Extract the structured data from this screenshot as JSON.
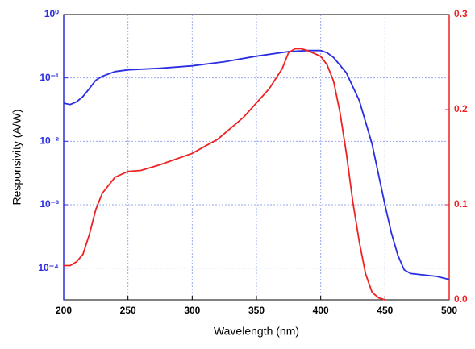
{
  "chart_data": {
    "type": "line",
    "xlabel": "Wavelength (nm)",
    "ylabel": "Responsivity (A/W)",
    "xlim": [
      200,
      500
    ],
    "xticks": [
      200,
      250,
      300,
      350,
      400,
      450,
      500
    ],
    "ylim": [
      3.16e-05,
      1
    ],
    "ylog": true,
    "yticks": [
      {
        "value": 1,
        "label": "10⁰"
      },
      {
        "value": 0.1,
        "label": "10⁻¹"
      },
      {
        "value": 0.01,
        "label": "10⁻²"
      },
      {
        "value": 0.001,
        "label": "10⁻³"
      },
      {
        "value": 0.0001,
        "label": "10⁻⁴"
      }
    ],
    "y2lim": [
      0,
      0.3
    ],
    "y2ticks": [
      {
        "value": 0,
        "label": "0.0"
      },
      0.1,
      0.2,
      0.3
    ],
    "y2color": "#ee2222",
    "grid": true,
    "series": [
      {
        "color": "#2a2ee0",
        "x": [
          200,
          205,
          210,
          215,
          220,
          225,
          230,
          240,
          250,
          275,
          300,
          325,
          350,
          375,
          390,
          400,
          405,
          410,
          420,
          430,
          440,
          450,
          455,
          460,
          465,
          470,
          480,
          490,
          500
        ],
        "values": [
          0.04,
          0.038,
          0.042,
          0.051,
          0.068,
          0.092,
          0.106,
          0.126,
          0.134,
          0.142,
          0.155,
          0.18,
          0.22,
          0.26,
          0.27,
          0.27,
          0.25,
          0.21,
          0.12,
          0.044,
          0.009,
          0.001,
          0.00036,
          0.00016,
          9.4e-05,
          8.2e-05,
          7.8e-05,
          7.4e-05,
          6.6e-05
        ]
      },
      {
        "color": "#ee2222",
        "axis": "y2",
        "x": [
          200,
          205,
          210,
          215,
          220,
          225,
          230,
          240,
          250,
          260,
          275,
          300,
          320,
          340,
          360,
          370,
          375,
          380,
          385,
          390,
          400,
          405,
          410,
          415,
          420,
          425,
          430,
          435,
          440,
          445,
          450
        ],
        "values": [
          0.036,
          0.036,
          0.04,
          0.048,
          0.069,
          0.095,
          0.112,
          0.129,
          0.135,
          0.136,
          0.142,
          0.154,
          0.169,
          0.192,
          0.222,
          0.243,
          0.26,
          0.264,
          0.264,
          0.262,
          0.256,
          0.247,
          0.23,
          0.197,
          0.154,
          0.103,
          0.061,
          0.027,
          0.008,
          0.002,
          0
        ]
      }
    ]
  }
}
